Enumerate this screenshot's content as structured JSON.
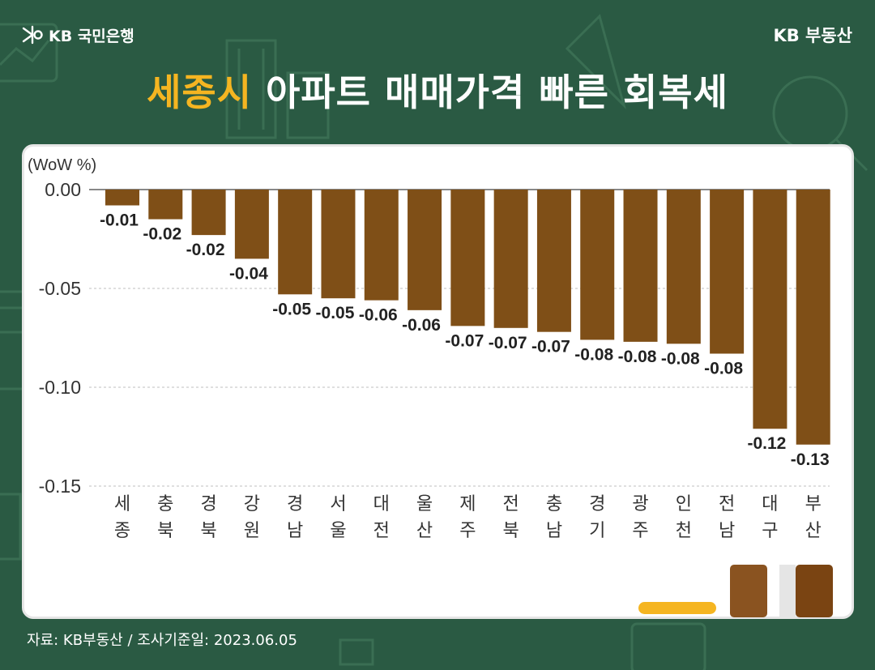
{
  "header": {
    "logo_text": "KB 국민은행",
    "brand": "KB 부동산"
  },
  "title": {
    "highlight": "세종시",
    "rest": " 아파트 매매가격 빠른 회복세"
  },
  "source": "자료: KB부동산 / 조사기준일: 2023.06.05",
  "colors": {
    "background": "#2a5a43",
    "bar": "#7f4f17",
    "title_highlight": "#f5b521",
    "panel": "#ffffff"
  },
  "chart_data": {
    "type": "bar",
    "unit_label": "(WoW %)",
    "categories": [
      [
        "세",
        "종"
      ],
      [
        "충",
        "북"
      ],
      [
        "경",
        "북"
      ],
      [
        "강",
        "원"
      ],
      [
        "경",
        "남"
      ],
      [
        "서",
        "울"
      ],
      [
        "대",
        "전"
      ],
      [
        "울",
        "산"
      ],
      [
        "제",
        "주"
      ],
      [
        "전",
        "북"
      ],
      [
        "충",
        "남"
      ],
      [
        "경",
        "기"
      ],
      [
        "광",
        "주"
      ],
      [
        "인",
        "천"
      ],
      [
        "전",
        "남"
      ],
      [
        "대",
        "구"
      ],
      [
        "부",
        "산"
      ]
    ],
    "values": [
      -0.008,
      -0.015,
      -0.023,
      -0.035,
      -0.053,
      -0.055,
      -0.056,
      -0.061,
      -0.069,
      -0.07,
      -0.072,
      -0.076,
      -0.077,
      -0.078,
      -0.083,
      -0.121,
      -0.129
    ],
    "data_labels": [
      "-0.01",
      "-0.02",
      "-0.02",
      "-0.04",
      "-0.05",
      "-0.05",
      "-0.06",
      "-0.06",
      "-0.07",
      "-0.07",
      "-0.07",
      "-0.08",
      "-0.08",
      "-0.08",
      "-0.08",
      "-0.12",
      "-0.13"
    ],
    "yticks": [
      0,
      -0.05,
      -0.1,
      -0.15
    ],
    "ytick_labels": [
      "0.00",
      "-0.05",
      "-0.10",
      "-0.15"
    ],
    "ylim": [
      -0.15,
      0
    ],
    "grid": true,
    "legend": "none"
  }
}
